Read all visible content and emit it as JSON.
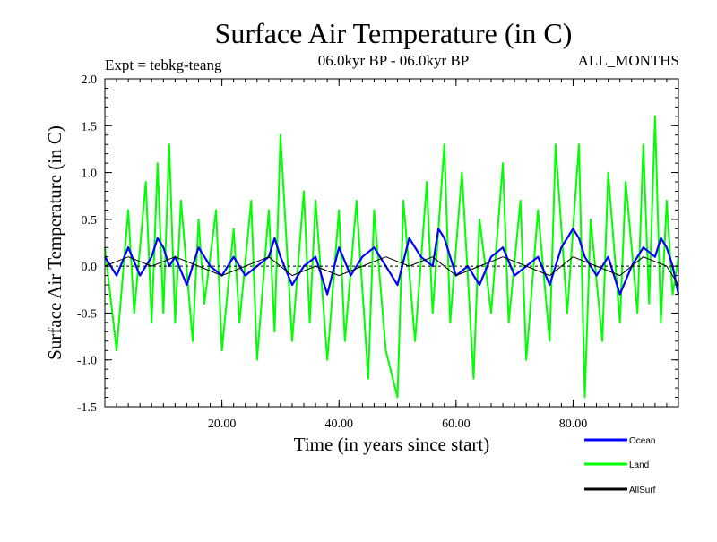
{
  "chart_data": {
    "type": "line",
    "title": "Surface Air Temperature (in C)",
    "subtitle_left": "Expt = tebkg-teang",
    "subtitle_center": "06.0kyr BP - 06.0kyr BP",
    "subtitle_right": "ALL_MONTHS",
    "xlabel": "Time (in years since start)",
    "ylabel": "Surface Air Temperature (in C)",
    "xlim": [
      0,
      98
    ],
    "ylim": [
      -1.5,
      2.0
    ],
    "x_ticks": [
      20,
      40,
      60,
      80
    ],
    "x_tick_labels": [
      "20.00",
      "40.00",
      "60.00",
      "80.00"
    ],
    "y_ticks": [
      -1.5,
      -1.0,
      -0.5,
      0.0,
      0.5,
      1.0,
      1.5,
      2.0
    ],
    "y_tick_labels": [
      "-1.5",
      "-1.0",
      "-0.5",
      "0.0",
      "0.5",
      "1.0",
      "1.5",
      "2.0"
    ],
    "zero_line": true,
    "series": [
      {
        "name": "Land",
        "color": "#00ff00",
        "x": [
          0,
          2,
          4,
          5,
          7,
          8,
          9,
          10,
          11,
          12,
          13,
          15,
          16,
          17,
          19,
          20,
          22,
          23,
          25,
          26,
          28,
          29,
          30,
          32,
          34,
          35,
          36,
          38,
          40,
          41,
          43,
          45,
          46,
          48,
          50,
          51,
          53,
          55,
          56,
          58,
          59,
          61,
          63,
          64,
          66,
          68,
          69,
          71,
          72,
          74,
          76,
          77,
          79,
          81,
          82,
          83,
          85,
          86,
          88,
          89,
          91,
          92,
          93,
          94,
          95,
          96,
          97,
          98
        ],
        "values": [
          0.2,
          -0.9,
          0.6,
          -0.5,
          0.9,
          -0.6,
          1.1,
          -0.5,
          1.3,
          -0.6,
          0.7,
          -0.8,
          0.5,
          -0.4,
          0.6,
          -0.9,
          0.4,
          -0.6,
          0.7,
          -1.0,
          0.6,
          -0.7,
          1.4,
          -0.8,
          0.8,
          -0.6,
          0.7,
          -1.0,
          0.6,
          -0.8,
          0.7,
          -1.2,
          0.6,
          -0.9,
          -1.4,
          0.7,
          -0.8,
          0.9,
          -0.5,
          1.3,
          -0.6,
          1.0,
          -1.2,
          0.5,
          -0.5,
          1.1,
          -0.6,
          0.7,
          -1.0,
          0.6,
          -0.8,
          1.3,
          -0.5,
          1.3,
          -1.4,
          0.5,
          -0.8,
          1.0,
          -0.6,
          0.9,
          -0.5,
          1.3,
          -0.4,
          1.6,
          -0.6,
          0.7,
          -0.3,
          0.1
        ]
      },
      {
        "name": "Ocean",
        "color": "#0000ff",
        "x": [
          0,
          2,
          4,
          6,
          8,
          9,
          10,
          11,
          12,
          14,
          16,
          18,
          20,
          22,
          24,
          26,
          28,
          29,
          30,
          32,
          34,
          36,
          38,
          40,
          42,
          44,
          46,
          48,
          50,
          52,
          54,
          56,
          57,
          58,
          60,
          62,
          64,
          66,
          68,
          70,
          72,
          74,
          76,
          78,
          80,
          81,
          82,
          84,
          86,
          88,
          90,
          92,
          94,
          95,
          96,
          97,
          98
        ],
        "values": [
          0.1,
          -0.1,
          0.2,
          -0.1,
          0.1,
          0.3,
          0.2,
          0.0,
          0.1,
          -0.2,
          0.2,
          0.0,
          -0.1,
          0.1,
          -0.1,
          0.0,
          0.1,
          0.3,
          0.1,
          -0.2,
          0.0,
          0.1,
          -0.3,
          0.2,
          -0.1,
          0.1,
          0.2,
          0.0,
          -0.2,
          0.3,
          0.1,
          0.0,
          0.4,
          0.3,
          -0.1,
          0.0,
          -0.2,
          0.1,
          0.2,
          -0.1,
          0.0,
          0.1,
          -0.2,
          0.2,
          0.4,
          0.3,
          0.1,
          -0.1,
          0.1,
          -0.3,
          0.0,
          0.2,
          0.1,
          0.3,
          0.2,
          0.0,
          -0.3
        ]
      },
      {
        "name": "AllSurf",
        "color": "#000000",
        "x": [
          0,
          4,
          8,
          12,
          16,
          20,
          24,
          28,
          32,
          36,
          40,
          44,
          48,
          52,
          56,
          60,
          64,
          68,
          72,
          76,
          80,
          84,
          88,
          92,
          96,
          98
        ],
        "values": [
          0.0,
          0.1,
          0.0,
          0.1,
          0.0,
          -0.1,
          0.0,
          0.1,
          -0.1,
          0.0,
          -0.1,
          0.0,
          0.1,
          0.0,
          0.1,
          -0.1,
          0.0,
          0.1,
          0.0,
          -0.1,
          0.1,
          0.0,
          -0.1,
          0.1,
          0.0,
          -0.2
        ]
      }
    ],
    "legend": {
      "placement": "bottom-right",
      "entries": [
        "Ocean",
        "Land",
        "AllSurf"
      ]
    }
  }
}
